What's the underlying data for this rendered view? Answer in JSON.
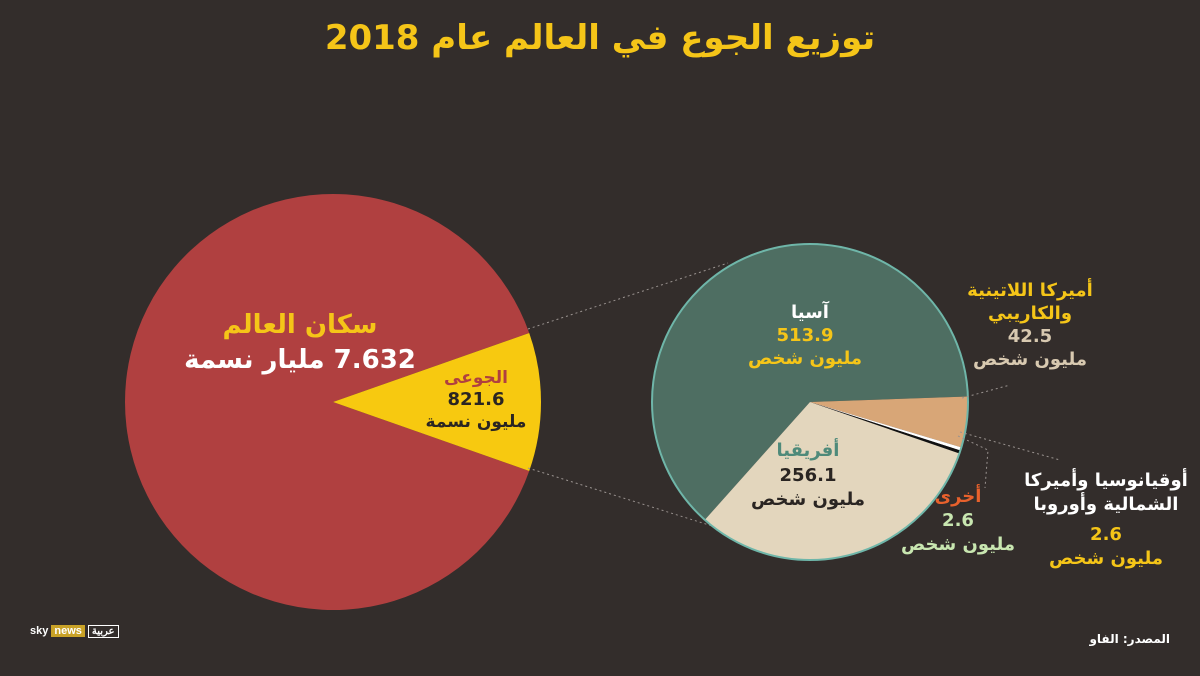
{
  "title": "توزيع الجوع في العالم عام 2018",
  "source": "المصدر: الفاو",
  "logo": {
    "sky": "sky",
    "news": "news",
    "arabic": "عربية"
  },
  "colors": {
    "background": "#332d2b",
    "title": "#f5c518",
    "world": "#b04040",
    "hungry": "#f7c910",
    "asia": "#4e6e62",
    "africa": "#e3d6bd",
    "latam": "#d8a677",
    "oceania": "#ffffff",
    "other": "#111111",
    "pie_border": "#6fb6a9"
  },
  "chart_data": [
    {
      "type": "pie",
      "slices": [
        {
          "id": "world",
          "label": "سكان العالم",
          "value_text": "7.632 مليار نسمة",
          "value": 7632,
          "unit": "مليون"
        },
        {
          "id": "hungry",
          "label": "الجوعى",
          "value_text": "821.6",
          "unit_text": "مليون نسمة",
          "value": 821.6
        }
      ]
    },
    {
      "type": "pie",
      "slices": [
        {
          "id": "asia",
          "label": "آسيا",
          "value": 513.9,
          "value_text": "513.9",
          "unit_text": "مليون شخص"
        },
        {
          "id": "latam",
          "label_line1": "أميركا اللاتينية",
          "label_line2": "والكاريبي",
          "value": 42.5,
          "value_text": "42.5",
          "unit_text": "مليون شخص"
        },
        {
          "id": "oceania",
          "label_line1": "أوقيانوسيا وأميركا",
          "label_line2": "الشمالية وأوروبا",
          "value": 2.6,
          "value_text": "2.6",
          "unit_text": "مليون شخص"
        },
        {
          "id": "other",
          "label": "أخرى",
          "value": 2.6,
          "value_text": "2.6",
          "unit_text": "مليون شخص"
        },
        {
          "id": "africa",
          "label": "أفريقيا",
          "value": 256.1,
          "value_text": "256.1",
          "unit_text": "مليون شخص"
        }
      ]
    }
  ]
}
